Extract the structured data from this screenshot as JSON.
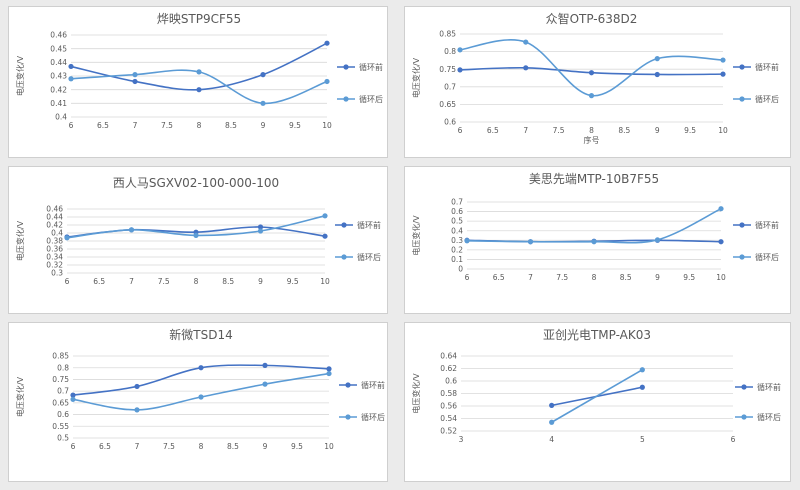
{
  "chart_data": [
    {
      "type": "line",
      "title": "烨映STP9CF55",
      "ylabel": "电压变化/V",
      "xlabel": "",
      "xlim": [
        6,
        10
      ],
      "xticks": [
        "6",
        "6.5",
        "7",
        "7.5",
        "8",
        "8.5",
        "9",
        "9.5",
        "10"
      ],
      "ylim": [
        0.4,
        0.46
      ],
      "yticks": [
        "0.4",
        "0.41",
        "0.42",
        "0.43",
        "0.44",
        "0.45",
        "0.46"
      ],
      "legend_position": "right",
      "series": [
        {
          "name": "循环前",
          "color": "#4472c4",
          "x": [
            6,
            7,
            8,
            9,
            10
          ],
          "y": [
            0.437,
            0.426,
            0.42,
            0.431,
            0.454
          ]
        },
        {
          "name": "循环后",
          "color": "#5b9bd5",
          "x": [
            6,
            7,
            8,
            9,
            10
          ],
          "y": [
            0.428,
            0.431,
            0.433,
            0.41,
            0.426
          ]
        }
      ]
    },
    {
      "type": "line",
      "title": "众智OTP-638D2",
      "ylabel": "电压变化/V",
      "xlabel": "序号",
      "xlim": [
        6,
        10
      ],
      "xticks": [
        "6",
        "6.5",
        "7",
        "7.5",
        "8",
        "8.5",
        "9",
        "9.5",
        "10"
      ],
      "ylim": [
        0.6,
        0.85
      ],
      "yticks": [
        "0.6",
        "0.65",
        "0.7",
        "0.75",
        "0.8",
        "0.85"
      ],
      "legend_position": "right",
      "series": [
        {
          "name": "循环前",
          "color": "#4472c4",
          "x": [
            6,
            7,
            8,
            9,
            10
          ],
          "y": [
            0.748,
            0.754,
            0.74,
            0.735,
            0.736
          ]
        },
        {
          "name": "循环后",
          "color": "#5b9bd5",
          "x": [
            6,
            7,
            8,
            9,
            10
          ],
          "y": [
            0.805,
            0.827,
            0.675,
            0.78,
            0.776
          ]
        }
      ]
    },
    {
      "type": "line",
      "title": "西人马SGXV02-100-000-100",
      "ylabel": "电压变化/V",
      "xlabel": "",
      "xlim": [
        6,
        10
      ],
      "xticks": [
        "6",
        "6.5",
        "7",
        "7.5",
        "8",
        "8.5",
        "9",
        "9.5",
        "10"
      ],
      "ylim": [
        0.3,
        0.46
      ],
      "yticks": [
        "0.3",
        "0.32",
        "0.34",
        "0.36",
        "0.38",
        "0.4",
        "0.42",
        "0.44",
        "0.46"
      ],
      "legend_position": "right",
      "series": [
        {
          "name": "循环前",
          "color": "#4472c4",
          "x": [
            6,
            7,
            8,
            9,
            10
          ],
          "y": [
            0.39,
            0.408,
            0.402,
            0.415,
            0.392
          ]
        },
        {
          "name": "循环后",
          "color": "#5b9bd5",
          "x": [
            6,
            7,
            8,
            9,
            10
          ],
          "y": [
            0.388,
            0.408,
            0.394,
            0.405,
            0.443
          ]
        }
      ]
    },
    {
      "type": "line",
      "title": "美思先端MTP-10B7F55",
      "ylabel": "电压变化/V",
      "xlabel": "",
      "xlim": [
        6,
        10
      ],
      "xticks": [
        "6",
        "6.5",
        "7",
        "7.5",
        "8",
        "8.5",
        "9",
        "9.5",
        "10"
      ],
      "ylim": [
        0,
        0.7
      ],
      "yticks": [
        "0",
        "0.1",
        "0.2",
        "0.3",
        "0.4",
        "0.5",
        "0.6",
        "0.7"
      ],
      "legend_position": "right",
      "series": [
        {
          "name": "循环前",
          "color": "#4472c4",
          "x": [
            6,
            7,
            8,
            9,
            10
          ],
          "y": [
            0.3,
            0.285,
            0.29,
            0.3,
            0.285
          ]
        },
        {
          "name": "循环后",
          "color": "#5b9bd5",
          "x": [
            6,
            7,
            8,
            9,
            10
          ],
          "y": [
            0.295,
            0.285,
            0.285,
            0.305,
            0.63
          ]
        }
      ]
    },
    {
      "type": "line",
      "title": "新微TSD14",
      "ylabel": "电压变化/V",
      "xlabel": "",
      "xlim": [
        6,
        10
      ],
      "xticks": [
        "6",
        "6.5",
        "7",
        "7.5",
        "8",
        "8.5",
        "9",
        "9.5",
        "10"
      ],
      "ylim": [
        0.5,
        0.85
      ],
      "yticks": [
        "0.5",
        "0.55",
        "0.6",
        "0.65",
        "0.7",
        "0.75",
        "0.8",
        "0.85"
      ],
      "legend_position": "right",
      "series": [
        {
          "name": "循环前",
          "color": "#4472c4",
          "x": [
            6,
            7,
            8,
            9,
            10
          ],
          "y": [
            0.683,
            0.72,
            0.8,
            0.81,
            0.795
          ]
        },
        {
          "name": "循环后",
          "color": "#5b9bd5",
          "x": [
            6,
            7,
            8,
            9,
            10
          ],
          "y": [
            0.665,
            0.62,
            0.675,
            0.73,
            0.775
          ]
        }
      ]
    },
    {
      "type": "line",
      "title": "亚创光电TMP-AK03",
      "ylabel": "电压变化/V",
      "xlabel": "",
      "xlim": [
        3,
        6
      ],
      "xticks": [
        "3",
        "4",
        "5",
        "6"
      ],
      "ylim": [
        0.52,
        0.64
      ],
      "yticks": [
        "0.52",
        "0.54",
        "0.56",
        "0.58",
        "0.6",
        "0.62",
        "0.64"
      ],
      "legend_position": "right",
      "series": [
        {
          "name": "循环前",
          "color": "#4472c4",
          "x": [
            4,
            5
          ],
          "y": [
            0.561,
            0.59
          ]
        },
        {
          "name": "循环后",
          "color": "#5b9bd5",
          "x": [
            4,
            5
          ],
          "y": [
            0.534,
            0.618
          ]
        }
      ]
    }
  ]
}
